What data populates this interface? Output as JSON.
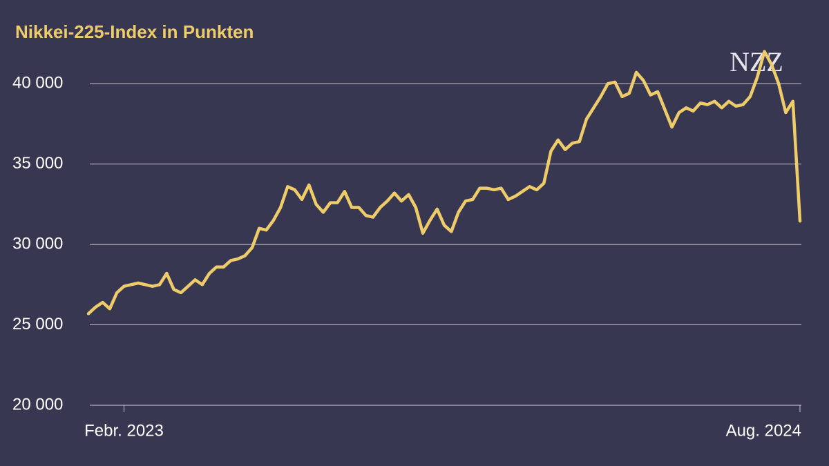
{
  "chart_data": {
    "type": "line",
    "title": "Nikkei-225-Index in Punkten",
    "logo": "NZZ",
    "categories": [
      null,
      null,
      null,
      null,
      null,
      "Febr. 2023",
      null,
      null,
      null,
      null,
      null,
      null,
      null,
      null,
      null,
      null,
      null,
      null,
      null,
      null,
      null,
      null,
      null,
      null,
      null,
      null,
      null,
      null,
      null,
      null,
      null,
      null,
      null,
      null,
      null,
      null,
      null,
      null,
      null,
      null,
      null,
      null,
      null,
      null,
      null,
      null,
      null,
      null,
      null,
      null,
      null,
      null,
      null,
      null,
      null,
      null,
      null,
      null,
      null,
      null,
      null,
      null,
      null,
      null,
      null,
      null,
      null,
      null,
      null,
      null,
      null,
      null,
      null,
      null,
      null,
      null,
      null,
      null,
      null,
      null,
      null,
      null,
      null,
      null,
      null,
      null,
      null,
      null,
      null,
      null,
      null,
      null,
      null,
      null,
      null,
      null,
      null,
      null,
      null,
      null,
      "Aug. 2024"
    ],
    "series": [
      {
        "name": "Nikkei 225",
        "color": "#efcc6a",
        "values": [
          25700,
          26100,
          26400,
          26000,
          27000,
          27400,
          27500,
          27600,
          27500,
          27400,
          27500,
          28200,
          27200,
          27000,
          27400,
          27800,
          27500,
          28200,
          28600,
          28600,
          29000,
          29100,
          29300,
          29800,
          31000,
          30900,
          31500,
          32300,
          33600,
          33400,
          32800,
          33700,
          32500,
          32000,
          32600,
          32600,
          33300,
          32300,
          32300,
          31800,
          31700,
          32300,
          32700,
          33200,
          32700,
          33100,
          32300,
          30700,
          31500,
          32200,
          31200,
          30800,
          32000,
          32700,
          32800,
          33500,
          33500,
          33400,
          33500,
          32800,
          33000,
          33300,
          33600,
          33400,
          33800,
          35800,
          36500,
          35900,
          36300,
          36400,
          37800,
          38500,
          39200,
          40000,
          40100,
          39200,
          39400,
          40700,
          40200,
          39300,
          39500,
          38400,
          37300,
          38200,
          38500,
          38300,
          38800,
          38700,
          38900,
          38500,
          38900,
          38600,
          38700,
          39200,
          40400,
          42000,
          41200,
          40000,
          38200,
          38900,
          31458
        ]
      }
    ],
    "ylim": [
      20000,
      42500
    ],
    "yticks": [
      {
        "value": 20000,
        "label": "20 000"
      },
      {
        "value": 25000,
        "label": "25 000"
      },
      {
        "value": 30000,
        "label": "30 000"
      },
      {
        "value": 35000,
        "label": "35 000"
      },
      {
        "value": 40000,
        "label": "40 000"
      }
    ],
    "grid": true
  }
}
